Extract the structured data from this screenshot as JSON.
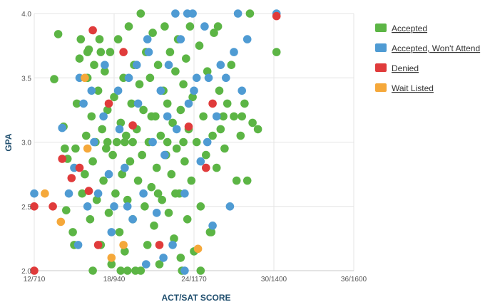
{
  "chart_data": {
    "type": "scatter",
    "xlabel": "ACT/SAT SCORE",
    "ylabel": "GPA",
    "xlim": [
      12,
      36
    ],
    "ylim": [
      2.0,
      4.0
    ],
    "x_ticks": [
      {
        "value": 12,
        "label": "12/710"
      },
      {
        "value": 18,
        "label": "18/940"
      },
      {
        "value": 24,
        "label": "24/1170"
      },
      {
        "value": 30,
        "label": "30/1400"
      },
      {
        "value": 36,
        "label": "36/1600"
      }
    ],
    "y_ticks": [
      {
        "value": 2.0,
        "label": "2.0"
      },
      {
        "value": 2.5,
        "label": "2.5"
      },
      {
        "value": 3.0,
        "label": "3.0"
      },
      {
        "value": 3.5,
        "label": "3.5"
      },
      {
        "value": 4.0,
        "label": "4.0"
      }
    ],
    "grid": true,
    "legend_position": "right",
    "series": [
      {
        "name": "Accepted",
        "color": "#5cb545",
        "points": [
          [
            13.5,
            3.49
          ],
          [
            13.8,
            3.84
          ],
          [
            14.2,
            3.12
          ],
          [
            14.3,
            2.95
          ],
          [
            14.5,
            2.87
          ],
          [
            14.4,
            2.47
          ],
          [
            14.9,
            2.3
          ],
          [
            15.1,
            2.95
          ],
          [
            15.2,
            3.3
          ],
          [
            15.4,
            3.65
          ],
          [
            15.5,
            3.8
          ],
          [
            15.6,
            2.6
          ],
          [
            15.8,
            2.75
          ],
          [
            15.9,
            3.05
          ],
          [
            16.0,
            3.5
          ],
          [
            16.1,
            3.72
          ],
          [
            16.2,
            2.4
          ],
          [
            16.3,
            3.2
          ],
          [
            16.4,
            2.85
          ],
          [
            16.5,
            3.6
          ],
          [
            16.6,
            3.0
          ],
          [
            16.7,
            2.55
          ],
          [
            16.8,
            3.4
          ],
          [
            16.9,
            3.8
          ],
          [
            17.0,
            2.2
          ],
          [
            17.1,
            3.1
          ],
          [
            17.2,
            2.7
          ],
          [
            17.3,
            3.55
          ],
          [
            17.4,
            2.95
          ],
          [
            17.5,
            3.25
          ],
          [
            17.6,
            2.45
          ],
          [
            17.7,
            3.7
          ],
          [
            17.8,
            2.05
          ],
          [
            17.9,
            2.9
          ],
          [
            18.0,
            3.35
          ],
          [
            18.1,
            2.6
          ],
          [
            18.2,
            3.0
          ],
          [
            18.3,
            3.8
          ],
          [
            18.4,
            2.3
          ],
          [
            18.5,
            3.15
          ],
          [
            18.6,
            2.75
          ],
          [
            18.7,
            3.5
          ],
          [
            18.8,
            2.15
          ],
          [
            18.9,
            3.05
          ],
          [
            19.0,
            2.55
          ],
          [
            19.1,
            3.9
          ],
          [
            19.2,
            2.85
          ],
          [
            19.3,
            3.3
          ],
          [
            19.4,
            2.4
          ],
          [
            19.5,
            3.6
          ],
          [
            19.6,
            2.0
          ],
          [
            19.7,
            3.1
          ],
          [
            19.8,
            2.7
          ],
          [
            19.9,
            3.45
          ],
          [
            20.0,
            4.0
          ],
          [
            20.1,
            2.9
          ],
          [
            20.2,
            3.25
          ],
          [
            20.3,
            2.5
          ],
          [
            20.4,
            3.7
          ],
          [
            20.5,
            2.2
          ],
          [
            20.6,
            3.0
          ],
          [
            20.7,
            3.5
          ],
          [
            20.8,
            2.65
          ],
          [
            20.9,
            3.85
          ],
          [
            21.0,
            2.35
          ],
          [
            21.1,
            3.2
          ],
          [
            21.2,
            2.8
          ],
          [
            21.3,
            3.6
          ],
          [
            21.4,
            2.05
          ],
          [
            21.5,
            3.05
          ],
          [
            21.6,
            2.55
          ],
          [
            21.7,
            3.4
          ],
          [
            21.8,
            3.9
          ],
          [
            21.9,
            2.9
          ],
          [
            22.0,
            3.3
          ],
          [
            22.1,
            2.45
          ],
          [
            22.2,
            3.7
          ],
          [
            22.3,
            2.75
          ],
          [
            22.4,
            3.15
          ],
          [
            22.5,
            2.25
          ],
          [
            22.6,
            3.55
          ],
          [
            22.7,
            2.95
          ],
          [
            22.8,
            3.8
          ],
          [
            22.9,
            2.6
          ],
          [
            23.0,
            3.25
          ],
          [
            23.1,
            2.0
          ],
          [
            23.2,
            3.45
          ],
          [
            23.3,
            2.85
          ],
          [
            23.4,
            3.65
          ],
          [
            23.5,
            2.4
          ],
          [
            23.6,
            3.1
          ],
          [
            23.7,
            3.9
          ],
          [
            23.8,
            2.7
          ],
          [
            23.9,
            3.35
          ],
          [
            24.0,
            2.15
          ],
          [
            24.2,
            3.0
          ],
          [
            24.4,
            3.75
          ],
          [
            24.5,
            2.5
          ],
          [
            24.7,
            3.2
          ],
          [
            24.9,
            2.9
          ],
          [
            25.0,
            3.55
          ],
          [
            25.2,
            2.3
          ],
          [
            25.4,
            3.05
          ],
          [
            25.5,
            3.85
          ],
          [
            25.7,
            2.8
          ],
          [
            25.9,
            3.4
          ],
          [
            26.0,
            3.1
          ],
          [
            26.3,
            2.95
          ],
          [
            26.5,
            3.3
          ],
          [
            26.8,
            3.6
          ],
          [
            27.0,
            3.2
          ],
          [
            27.2,
            2.7
          ],
          [
            27.5,
            3.05
          ],
          [
            27.8,
            3.3
          ],
          [
            28.0,
            2.7
          ],
          [
            28.2,
            4.0
          ],
          [
            28.4,
            3.15
          ],
          [
            28.8,
            3.1
          ],
          [
            30.2,
            3.7
          ],
          [
            16.0,
            3.7
          ],
          [
            17.0,
            3.7
          ],
          [
            18.5,
            2.0
          ],
          [
            19.0,
            2.0
          ],
          [
            20.0,
            2.0
          ],
          [
            24.5,
            2.0
          ],
          [
            23.0,
            2.1
          ],
          [
            25.3,
            2.3
          ],
          [
            25.8,
            3.9
          ],
          [
            26.2,
            3.2
          ],
          [
            27.6,
            3.2
          ],
          [
            15.0,
            2.2
          ],
          [
            16.4,
            2.0
          ],
          [
            19.4,
            3.0
          ],
          [
            22.0,
            3.0
          ],
          [
            20.8,
            3.2
          ],
          [
            18.8,
            3.0
          ],
          [
            21.3,
            2.6
          ],
          [
            22.6,
            2.6
          ],
          [
            17.5,
            3.0
          ],
          [
            23.2,
            3.0
          ]
        ]
      },
      {
        "name": "Accepted, Won't Attend",
        "color": "#4f9bd3",
        "points": [
          [
            12.0,
            2.6
          ],
          [
            14.1,
            3.11
          ],
          [
            14.6,
            2.6
          ],
          [
            15.0,
            2.8
          ],
          [
            15.3,
            2.2
          ],
          [
            15.7,
            3.3
          ],
          [
            16.0,
            2.5
          ],
          [
            16.5,
            3.0
          ],
          [
            16.8,
            2.6
          ],
          [
            17.2,
            3.2
          ],
          [
            17.6,
            2.75
          ],
          [
            18.0,
            2.5
          ],
          [
            18.4,
            3.1
          ],
          [
            18.8,
            2.8
          ],
          [
            19.1,
            3.5
          ],
          [
            19.4,
            2.4
          ],
          [
            19.8,
            3.3
          ],
          [
            20.2,
            2.6
          ],
          [
            20.6,
            3.7
          ],
          [
            20.9,
            3.0
          ],
          [
            21.2,
            2.45
          ],
          [
            21.5,
            3.4
          ],
          [
            21.8,
            2.9
          ],
          [
            22.1,
            3.6
          ],
          [
            22.4,
            2.2
          ],
          [
            22.7,
            3.1
          ],
          [
            23.0,
            3.8
          ],
          [
            23.3,
            2.6
          ],
          [
            23.6,
            3.3
          ],
          [
            23.9,
            4.0
          ],
          [
            24.2,
            3.5
          ],
          [
            24.5,
            2.85
          ],
          [
            24.8,
            3.9
          ],
          [
            25.1,
            3.5
          ],
          [
            25.4,
            2.35
          ],
          [
            25.7,
            3.2
          ],
          [
            26.0,
            3.6
          ],
          [
            26.4,
            3.5
          ],
          [
            26.7,
            2.5
          ],
          [
            27.0,
            3.7
          ],
          [
            27.3,
            4.0
          ],
          [
            27.6,
            3.4
          ],
          [
            28.0,
            3.8
          ],
          [
            30.2,
            4.0
          ],
          [
            22.6,
            4.0
          ],
          [
            23.5,
            4.0
          ],
          [
            20.5,
            3.8
          ],
          [
            19.7,
            3.6
          ],
          [
            18.3,
            3.4
          ],
          [
            17.3,
            3.6
          ],
          [
            16.3,
            3.4
          ],
          [
            15.4,
            3.5
          ],
          [
            21.7,
            2.1
          ],
          [
            23.3,
            2.0
          ],
          [
            20.4,
            2.05
          ],
          [
            19.0,
            2.5
          ],
          [
            17.8,
            2.3
          ],
          [
            22.0,
            3.2
          ],
          [
            24.0,
            3.4
          ],
          [
            25.0,
            3.0
          ]
        ]
      },
      {
        "name": "Denied",
        "color": "#e03b3b",
        "points": [
          [
            12.0,
            2.0
          ],
          [
            12.0,
            2.5
          ],
          [
            13.4,
            2.5
          ],
          [
            14.1,
            2.87
          ],
          [
            14.8,
            2.72
          ],
          [
            15.4,
            2.8
          ],
          [
            16.1,
            2.62
          ],
          [
            16.4,
            3.87
          ],
          [
            16.8,
            2.2
          ],
          [
            17.6,
            3.3
          ],
          [
            18.7,
            3.7
          ],
          [
            19.4,
            3.13
          ],
          [
            21.4,
            2.2
          ],
          [
            23.6,
            3.12
          ],
          [
            25.4,
            3.3
          ],
          [
            30.2,
            3.98
          ],
          [
            24.9,
            2.8
          ]
        ]
      },
      {
        "name": "Wait Listed",
        "color": "#f5a83a",
        "points": [
          [
            12.8,
            2.6
          ],
          [
            14.0,
            2.38
          ],
          [
            15.8,
            3.5
          ],
          [
            16.0,
            2.95
          ],
          [
            17.8,
            2.1
          ],
          [
            18.7,
            2.2
          ],
          [
            24.3,
            2.17
          ]
        ]
      }
    ]
  }
}
